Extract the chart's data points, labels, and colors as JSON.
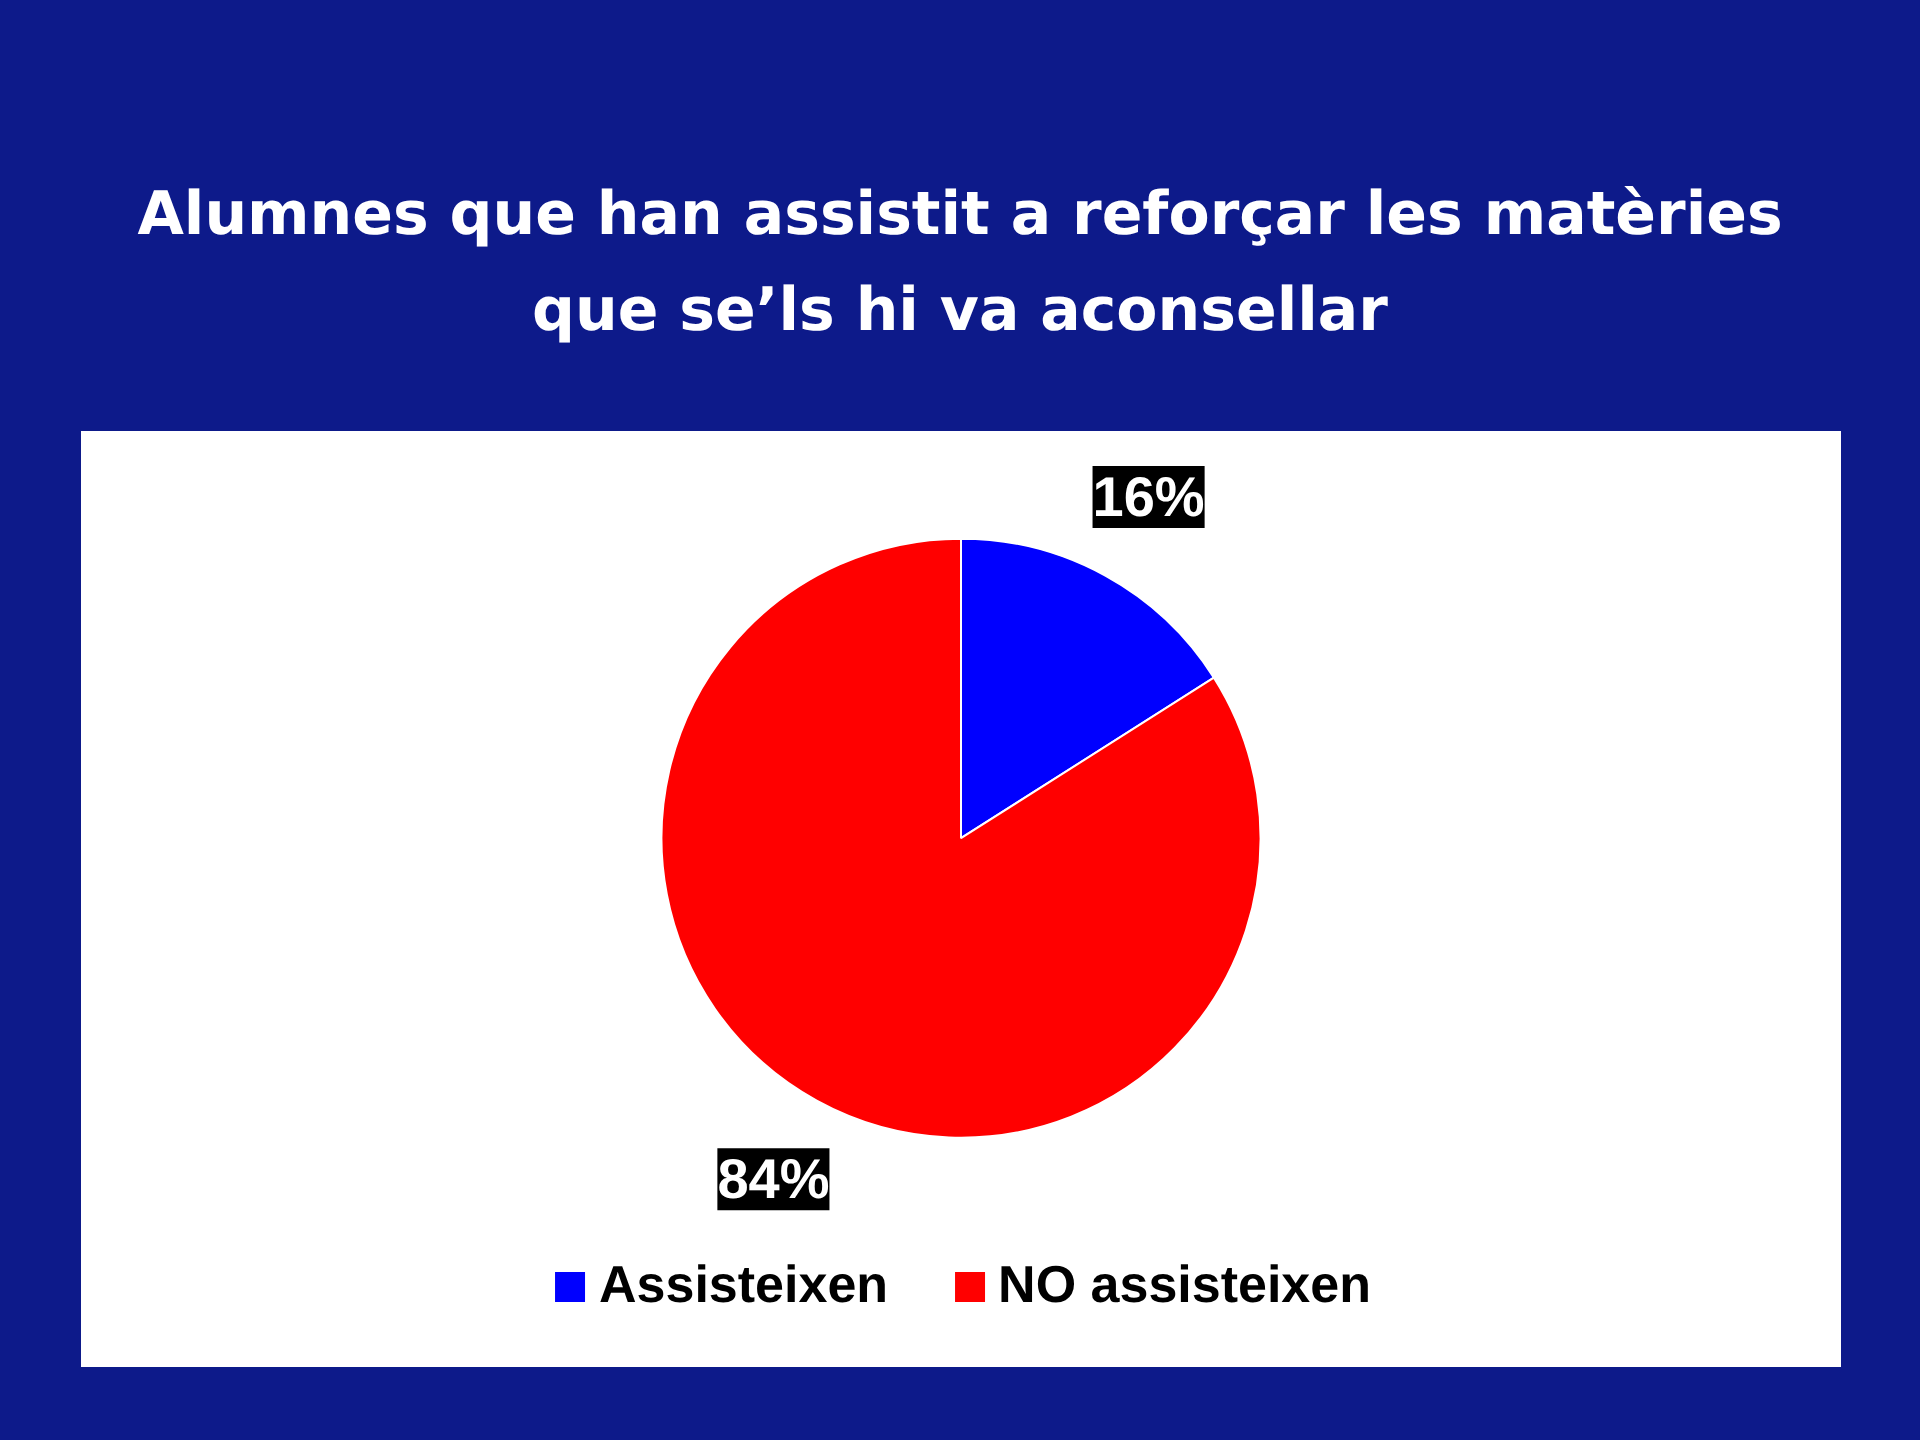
{
  "chart_data": {
    "type": "pie",
    "title": "Alumnes que han assistit a reforçar les matèries que se’ls hi va aconsellar",
    "categories": [
      "Assisteixen",
      "NO assisteixen"
    ],
    "values": [
      16,
      84
    ],
    "colors": [
      "#0000ff",
      "#ff0000"
    ],
    "value_labels": [
      "16%",
      "84%"
    ],
    "legend": "bottom"
  }
}
